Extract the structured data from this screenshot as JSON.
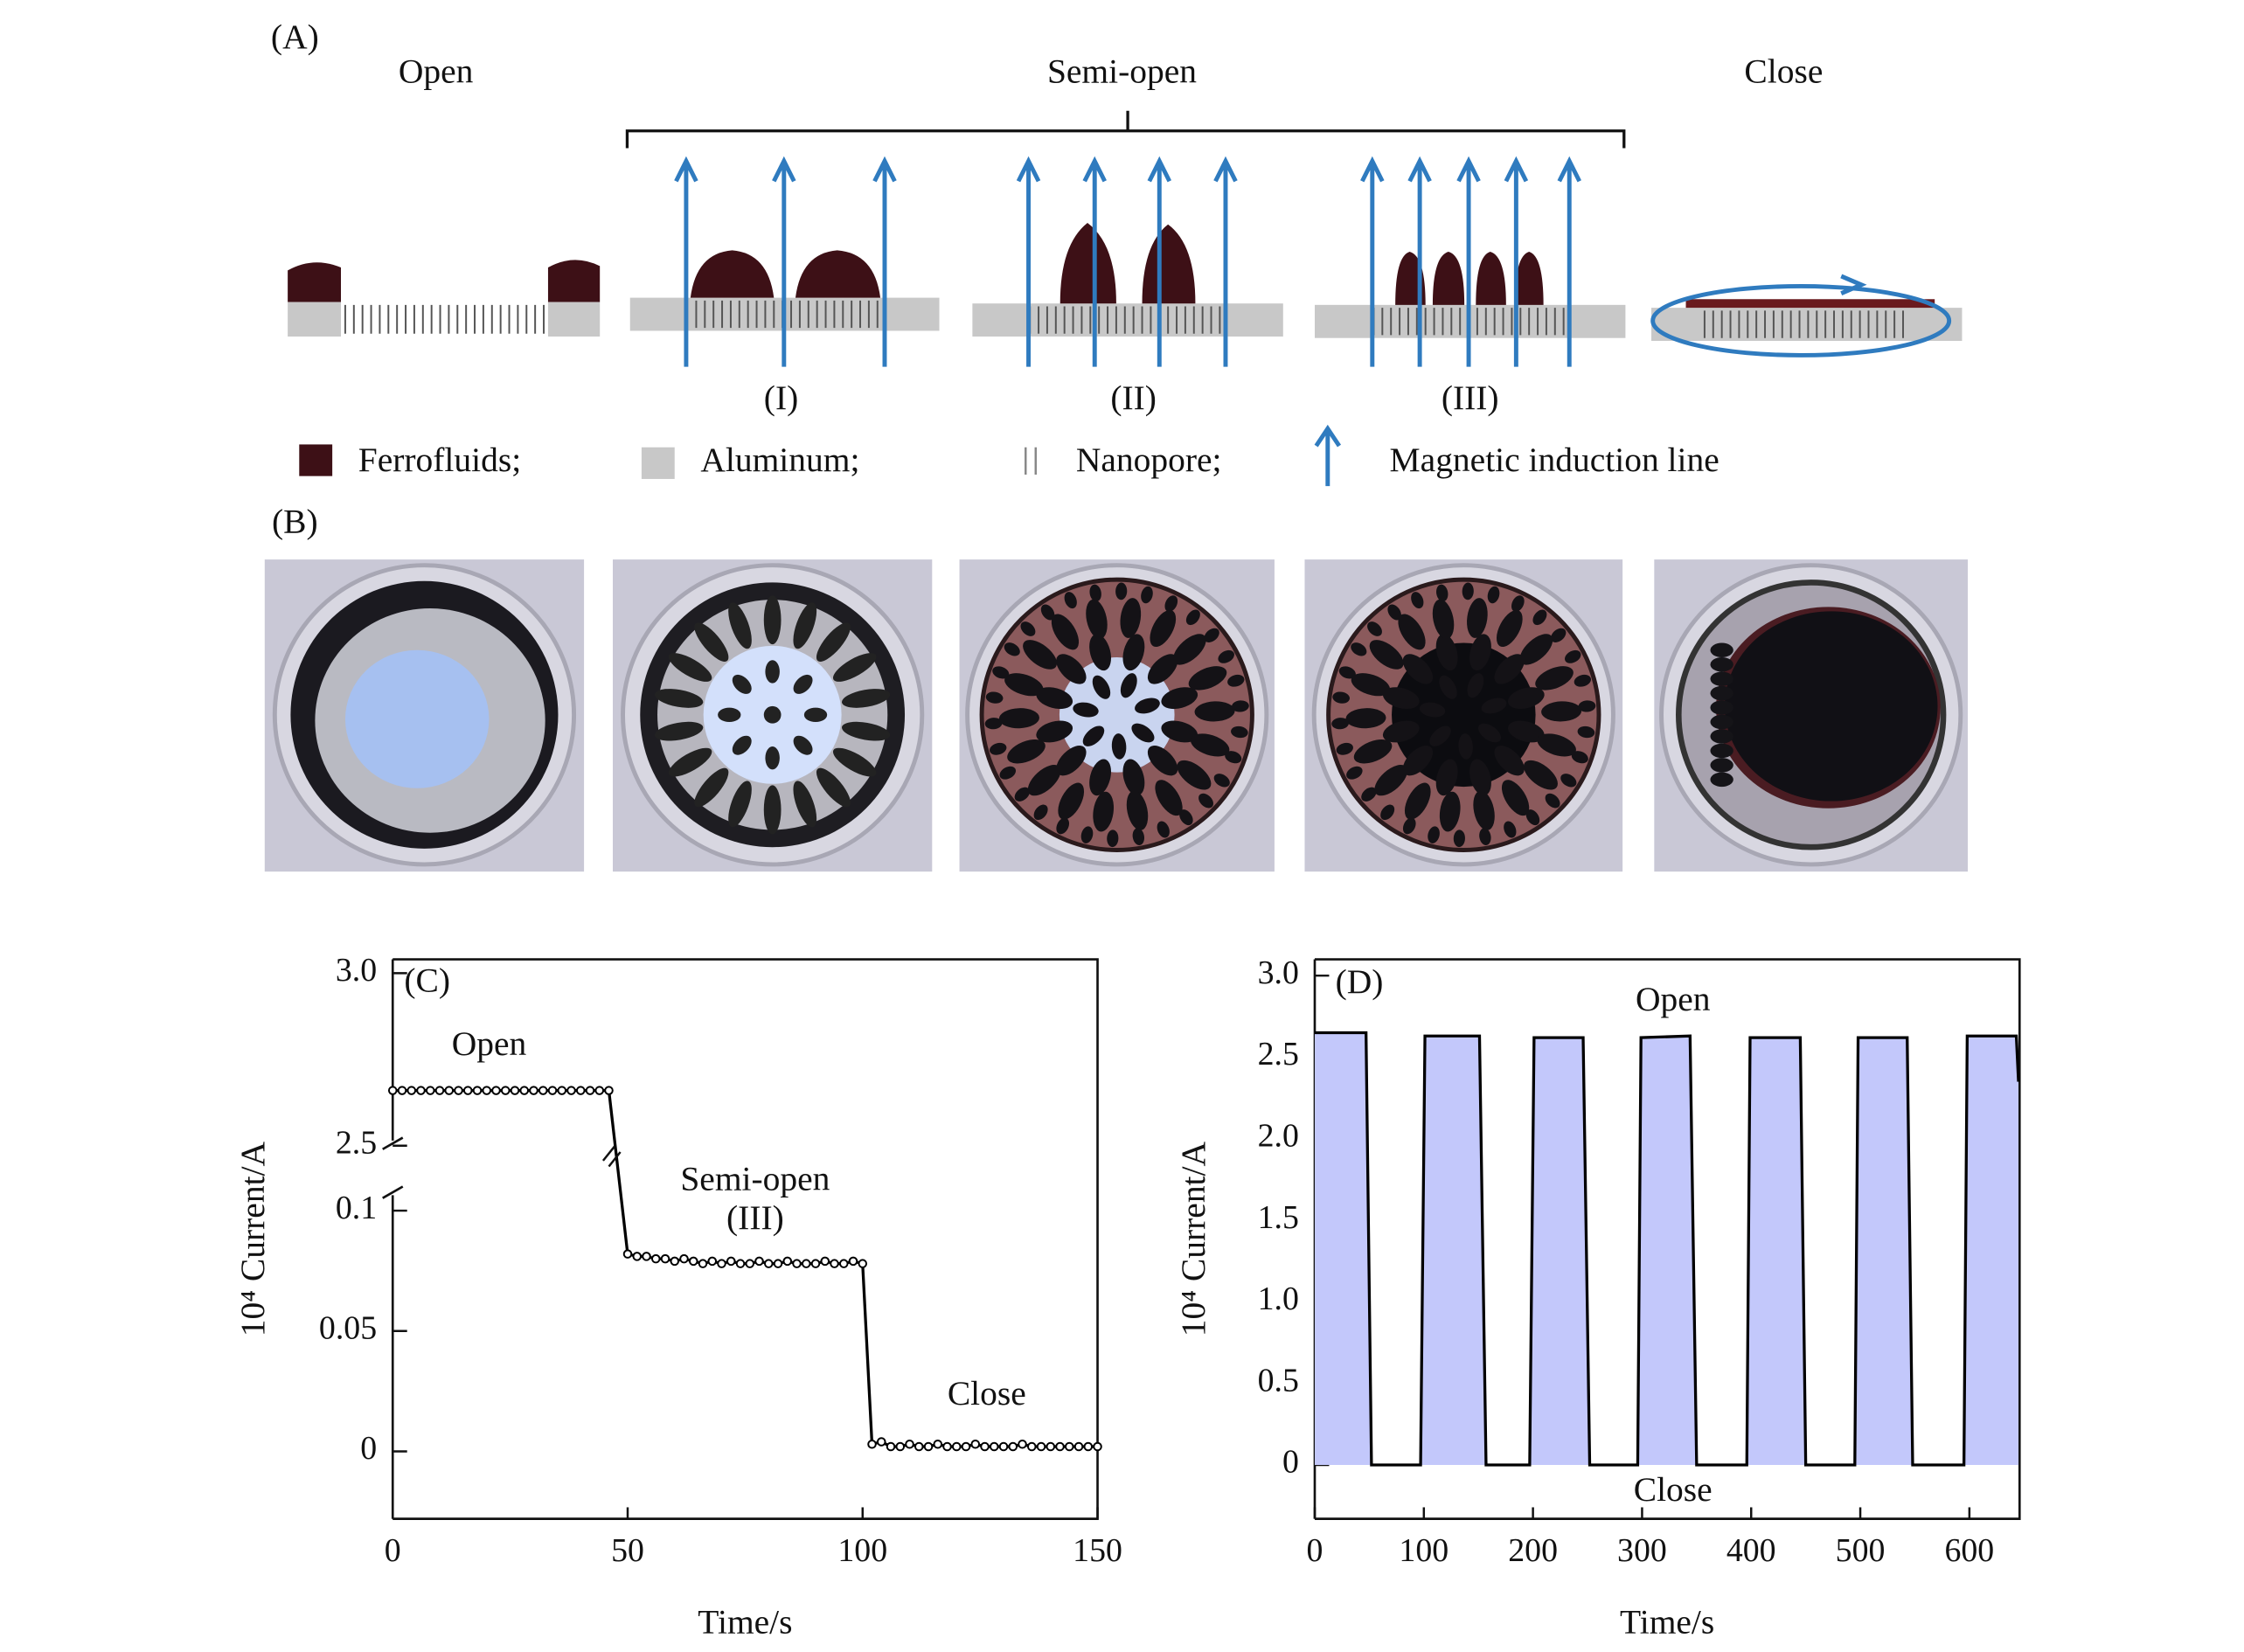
{
  "panel_a": {
    "label": "(A)",
    "states": [
      "Open",
      "Semi-open",
      "Close"
    ],
    "sub_states": [
      "(I)",
      "(II)",
      "(III)"
    ],
    "legend": [
      "Ferrofluids;",
      "Aluminum;",
      "Nanopore;",
      "Magnetic induction line"
    ]
  },
  "panel_b": {
    "label": "(B)"
  },
  "chart_data": [
    {
      "type": "line",
      "panel_label": "(C)",
      "xlabel": "Time/s",
      "ylabel": "10⁴ Current/A",
      "color": "#000000",
      "markers": true,
      "annotations": [
        "Open",
        "Semi-open",
        "(III)",
        "Close"
      ],
      "x": [
        0,
        2,
        4,
        6,
        8,
        10,
        12,
        14,
        16,
        18,
        20,
        22,
        24,
        26,
        28,
        30,
        32,
        34,
        36,
        38,
        40,
        42,
        44,
        46,
        50,
        52,
        54,
        56,
        58,
        60,
        62,
        64,
        66,
        68,
        70,
        72,
        74,
        76,
        78,
        80,
        82,
        84,
        86,
        88,
        90,
        92,
        94,
        96,
        98,
        100,
        102,
        104,
        106,
        108,
        110,
        112,
        114,
        116,
        118,
        120,
        122,
        124,
        126,
        128,
        130,
        132,
        134,
        136,
        138,
        140,
        142,
        144,
        146,
        148,
        150
      ],
      "values": [
        2.66,
        2.66,
        2.66,
        2.66,
        2.66,
        2.66,
        2.66,
        2.66,
        2.66,
        2.66,
        2.66,
        2.66,
        2.66,
        2.66,
        2.66,
        2.66,
        2.66,
        2.66,
        2.66,
        2.66,
        2.66,
        2.66,
        2.66,
        2.66,
        0.082,
        0.081,
        0.081,
        0.08,
        0.08,
        0.079,
        0.08,
        0.079,
        0.078,
        0.079,
        0.078,
        0.079,
        0.078,
        0.078,
        0.079,
        0.078,
        0.078,
        0.079,
        0.078,
        0.078,
        0.078,
        0.079,
        0.078,
        0.078,
        0.079,
        0.078,
        0.003,
        0.004,
        0.002,
        0.002,
        0.003,
        0.002,
        0.002,
        0.003,
        0.002,
        0.002,
        0.002,
        0.003,
        0.002,
        0.002,
        0.002,
        0.002,
        0.003,
        0.002,
        0.002,
        0.002,
        0.002,
        0.002,
        0.002,
        0.002,
        0.002
      ],
      "xlim": [
        0,
        150
      ],
      "xticks": [
        0,
        50,
        100,
        150
      ],
      "ylim": [
        -0.028,
        3.04
      ],
      "y_break": [
        0.11,
        2.49
      ],
      "yticks": [
        0,
        0.05,
        0.1,
        2.5,
        {
          "value": 3,
          "label": "3.0"
        }
      ]
    },
    {
      "type": "area",
      "panel_label": "(D)",
      "xlabel": "Time/s",
      "ylabel": "10⁴ Current/A",
      "color": "#000000",
      "fill": "#c3c8fb",
      "annotations": [
        "Open",
        "Close"
      ],
      "x": [
        0,
        47,
        52,
        97,
        101,
        151,
        157,
        197,
        201,
        246,
        252,
        296,
        299,
        344,
        350,
        396,
        399,
        445,
        450,
        495,
        498,
        543,
        548,
        595,
        598,
        643,
        645
      ],
      "values": [
        2.65,
        2.65,
        0,
        0,
        2.63,
        2.63,
        0,
        0,
        2.62,
        2.62,
        0,
        0,
        2.62,
        2.63,
        0,
        0,
        2.62,
        2.62,
        0,
        0,
        2.62,
        2.62,
        0,
        0,
        2.63,
        2.63,
        2.35
      ],
      "xlim": [
        0,
        646
      ],
      "xticks": [
        0,
        100,
        200,
        300,
        400,
        500,
        600
      ],
      "ylim": [
        -0.33,
        3.1
      ],
      "yticks": [
        0,
        0.5,
        {
          "value": 1,
          "label": "1.0"
        },
        1.5,
        {
          "value": 2,
          "label": "2.0"
        },
        2.5,
        {
          "value": 3,
          "label": "3.0"
        }
      ]
    }
  ]
}
